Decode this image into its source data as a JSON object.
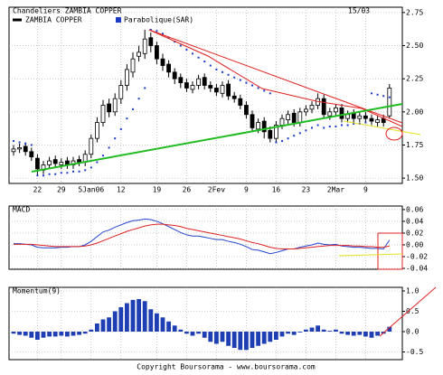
{
  "chart_data": [
    {
      "type": "candlestick",
      "title": "Chandeliers  ZAMBIA COPPER",
      "date": "15/03",
      "categories": [
        null,
        null,
        null,
        null,
        "22",
        null,
        null,
        null,
        "29",
        null,
        null,
        null,
        null,
        "5Jan06",
        null,
        null,
        null,
        null,
        "12",
        null,
        null,
        null,
        null,
        null,
        "19",
        null,
        null,
        null,
        null,
        "26",
        null,
        null,
        null,
        null,
        "2Fev",
        null,
        null,
        null,
        null,
        "9",
        null,
        null,
        null,
        null,
        "16",
        null,
        null,
        null,
        null,
        "23",
        null,
        null,
        null,
        null,
        "2Mar",
        null,
        null,
        null,
        null,
        "9",
        null,
        null,
        null,
        null
      ],
      "series": [
        {
          "name": "ZAMBIA COPPER",
          "color": "#000000",
          "open": [
            1.7,
            1.72,
            1.74,
            1.7,
            1.65,
            1.56,
            1.6,
            1.64,
            1.6,
            1.63,
            1.6,
            1.64,
            1.62,
            1.68,
            1.8,
            1.92,
            2.06,
            2.0,
            2.1,
            2.2,
            2.3,
            2.42,
            2.44,
            2.56,
            2.5,
            2.4,
            2.36,
            2.3,
            2.26,
            2.22,
            2.17,
            2.2,
            2.26,
            2.2,
            2.18,
            2.14,
            2.21,
            2.12,
            2.1,
            2.05,
            1.98,
            1.87,
            1.93,
            1.86,
            1.8,
            1.9,
            1.94,
            1.99,
            1.92,
            2.0,
            2.02,
            2.05,
            2.1,
            1.97,
            2.0,
            2.03,
            1.95,
            1.99,
            1.95,
            1.97,
            1.95,
            1.92,
            1.95,
            1.97
          ],
          "high": [
            1.75,
            1.76,
            1.77,
            1.73,
            1.68,
            1.63,
            1.66,
            1.67,
            1.65,
            1.66,
            1.66,
            1.67,
            1.71,
            1.83,
            1.96,
            2.09,
            2.1,
            2.14,
            2.24,
            2.36,
            2.45,
            2.5,
            2.62,
            2.6,
            2.53,
            2.44,
            2.39,
            2.33,
            2.29,
            2.25,
            2.23,
            2.28,
            2.29,
            2.23,
            2.21,
            2.23,
            2.24,
            2.15,
            2.13,
            2.08,
            2.01,
            1.95,
            1.96,
            1.89,
            1.93,
            1.98,
            2.01,
            2.02,
            2.03,
            2.05,
            2.08,
            2.14,
            2.13,
            2.03,
            2.06,
            2.06,
            2.01,
            2.02,
            2.0,
            2.0,
            1.98,
            1.97,
            1.98,
            2.21
          ],
          "low": [
            1.67,
            1.69,
            1.67,
            1.63,
            1.52,
            1.53,
            1.57,
            1.58,
            1.57,
            1.57,
            1.57,
            1.59,
            1.59,
            1.65,
            1.77,
            1.89,
            1.96,
            1.97,
            2.06,
            2.16,
            2.26,
            2.38,
            2.4,
            2.45,
            2.36,
            2.31,
            2.26,
            2.21,
            2.18,
            2.15,
            2.14,
            2.17,
            2.17,
            2.15,
            2.12,
            2.11,
            2.09,
            2.07,
            2.02,
            1.95,
            1.85,
            1.84,
            1.8,
            1.77,
            1.77,
            1.87,
            1.91,
            1.89,
            1.89,
            1.97,
            1.99,
            2.02,
            1.95,
            1.94,
            1.97,
            1.92,
            1.92,
            1.92,
            1.92,
            1.92,
            1.9,
            1.89,
            1.89,
            1.95
          ],
          "close": [
            1.72,
            1.73,
            1.7,
            1.66,
            1.57,
            1.6,
            1.63,
            1.61,
            1.62,
            1.6,
            1.63,
            1.62,
            1.68,
            1.8,
            1.92,
            2.05,
            2.0,
            2.1,
            2.2,
            2.32,
            2.4,
            2.45,
            2.55,
            2.5,
            2.4,
            2.35,
            2.3,
            2.25,
            2.22,
            2.18,
            2.2,
            2.25,
            2.2,
            2.18,
            2.15,
            2.2,
            2.12,
            2.1,
            2.05,
            1.98,
            1.88,
            1.92,
            1.85,
            1.8,
            1.9,
            1.95,
            1.98,
            1.92,
            2.0,
            2.02,
            2.05,
            2.1,
            1.98,
            2.0,
            2.03,
            1.95,
            1.98,
            1.95,
            1.97,
            1.95,
            1.93,
            1.94,
            1.92,
            2.18
          ]
        },
        {
          "name": "Parabolique(SAR)",
          "color": "#1c3cc8",
          "values": [
            1.78,
            1.77,
            1.76,
            1.75,
            1.52,
            1.52,
            1.53,
            1.53,
            1.54,
            1.54,
            1.55,
            1.55,
            1.56,
            1.58,
            1.62,
            1.67,
            1.73,
            1.8,
            1.87,
            1.95,
            2.02,
            2.1,
            2.18,
            2.62,
            2.61,
            2.59,
            2.56,
            2.53,
            2.5,
            2.47,
            2.44,
            2.41,
            2.38,
            2.35,
            2.32,
            2.3,
            2.28,
            2.26,
            2.24,
            2.22,
            2.2,
            2.18,
            2.16,
            2.14,
            1.77,
            1.78,
            1.8,
            1.82,
            1.84,
            1.86,
            1.88,
            1.9,
            1.88,
            1.89,
            1.89,
            1.9,
            1.9,
            1.91,
            1.91,
            1.92,
            2.14,
            2.13,
            2.12,
            2.11
          ]
        }
      ],
      "ylim": [
        1.46,
        2.79
      ],
      "yticks": [
        {
          "value": 1.5,
          "label": "1.50"
        },
        1.75,
        {
          "value": 2,
          "label": "2.00"
        },
        2.25,
        {
          "value": 2.5,
          "label": "2.50"
        },
        2.75
      ],
      "grid": true
    },
    {
      "type": "line",
      "title": "MACD",
      "series": [
        {
          "color": "#2244cc",
          "values": [
            0.002,
            0.002,
            0.001,
            0.0,
            -0.004,
            -0.005,
            -0.005,
            -0.005,
            -0.004,
            -0.004,
            -0.003,
            -0.003,
            0.0,
            0.006,
            0.014,
            0.022,
            0.025,
            0.03,
            0.034,
            0.038,
            0.041,
            0.042,
            0.044,
            0.043,
            0.04,
            0.036,
            0.031,
            0.026,
            0.021,
            0.017,
            0.015,
            0.015,
            0.013,
            0.011,
            0.009,
            0.009,
            0.006,
            0.004,
            0.001,
            -0.003,
            -0.008,
            -0.009,
            -0.012,
            -0.015,
            -0.013,
            -0.01,
            -0.007,
            -0.007,
            -0.004,
            -0.002,
            0.0,
            0.003,
            0.001,
            0.0,
            0.001,
            -0.002,
            -0.003,
            -0.004,
            -0.004,
            -0.005,
            -0.006,
            -0.006,
            -0.007,
            0.008
          ]
        },
        {
          "color": "#dd2222",
          "values": [
            0.001,
            0.001,
            0.001,
            0.001,
            0.0,
            -0.001,
            -0.002,
            -0.003,
            -0.003,
            -0.003,
            -0.003,
            -0.003,
            -0.002,
            0.0,
            0.003,
            0.007,
            0.011,
            0.015,
            0.019,
            0.023,
            0.026,
            0.029,
            0.032,
            0.034,
            0.035,
            0.035,
            0.034,
            0.033,
            0.031,
            0.028,
            0.026,
            0.024,
            0.022,
            0.02,
            0.018,
            0.016,
            0.014,
            0.012,
            0.01,
            0.007,
            0.004,
            0.002,
            -0.001,
            -0.004,
            -0.006,
            -0.007,
            -0.007,
            -0.007,
            -0.006,
            -0.005,
            -0.004,
            -0.003,
            -0.002,
            -0.001,
            -0.001,
            -0.001,
            -0.001,
            -0.002,
            -0.002,
            -0.003,
            -0.003,
            -0.004,
            -0.004,
            -0.002
          ]
        }
      ],
      "ylim": [
        -0.0415,
        0.066
      ],
      "yticks": [
        0.06,
        0.04,
        0.02,
        {
          "value": 0,
          "label": "0.00"
        },
        -0.02,
        -0.04
      ],
      "grid": true
    },
    {
      "type": "bar",
      "title": "Momentum(9)",
      "color": "#1e3fb4",
      "values": [
        -0.05,
        -0.08,
        -0.1,
        -0.15,
        -0.2,
        -0.15,
        -0.12,
        -0.12,
        -0.1,
        -0.12,
        -0.1,
        -0.08,
        -0.05,
        0.05,
        0.2,
        0.3,
        0.35,
        0.5,
        0.6,
        0.7,
        0.78,
        0.8,
        0.75,
        0.55,
        0.45,
        0.35,
        0.25,
        0.15,
        0.05,
        -0.05,
        -0.1,
        -0.05,
        -0.15,
        -0.25,
        -0.3,
        -0.25,
        -0.35,
        -0.4,
        -0.45,
        -0.45,
        -0.4,
        -0.35,
        -0.3,
        -0.25,
        -0.2,
        -0.12,
        -0.05,
        -0.08,
        -0.02,
        0.05,
        0.1,
        0.15,
        0.05,
        0.02,
        0.05,
        -0.05,
        -0.08,
        -0.1,
        -0.08,
        -0.12,
        -0.15,
        -0.1,
        -0.05,
        0.12
      ],
      "ylim": [
        -0.689,
        1.089
      ],
      "yticks": [
        {
          "value": 1,
          "label": "1.0"
        },
        0.5,
        {
          "value": 0,
          "label": "0.0"
        },
        -0.5
      ],
      "grid": true
    },
    {
      "type": "note",
      "text": "Copyright Boursorama - www.boursorama.com"
    }
  ]
}
